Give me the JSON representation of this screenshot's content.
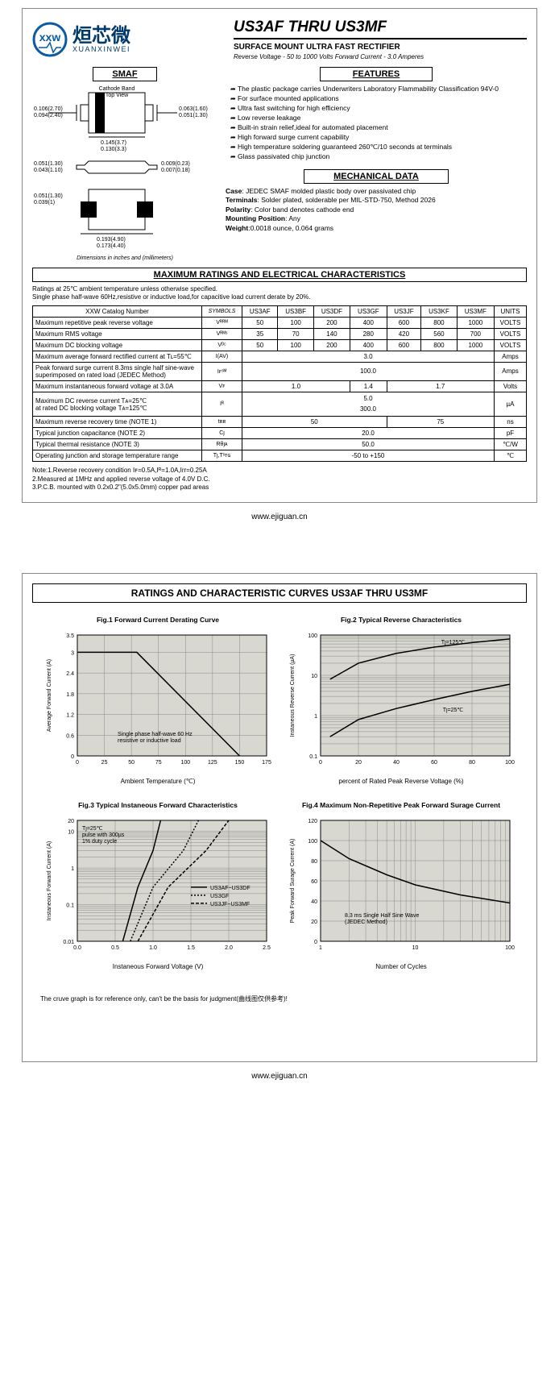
{
  "header": {
    "logo_cn": "烜芯微",
    "logo_en": "XUANXINWEI",
    "title": "US3AF THRU US3MF",
    "subtitle": "SURFACE MOUNT ULTRA FAST RECTIFIER",
    "spec_line": "Reverse Voltage - 50 to 1000 Volts  Forward Current - 3.0 Amperes",
    "logo_colors": {
      "ring": "#0a5aa6",
      "inner": "#0a5aa6"
    }
  },
  "smaf": {
    "heading": "SMAF",
    "dims_note": "Dimensions in inches and (millimeters)",
    "cathode_label": "Cathode Band\nTop View",
    "dims": {
      "a": "0.106(2.70)\n0.094(2.40)",
      "b": "0.063(1.60)\n0.051(1.30)",
      "c": "0.145(3.7)\n0.130(3.3)",
      "d": "0.051(1.30)\n0.043(1.10)",
      "e": "0.009(0.23)\n0.007(0.18)",
      "f": "0.051(1.30)\n0.039(1)",
      "g": "0.193(4.90)\n0.173(4.40)"
    }
  },
  "features": {
    "heading": "FEATURES",
    "items": [
      "The plastic package carries Underwriters Laboratory Flammability Classification 94V-0",
      "For surface mounted applications",
      "Ultra fast switching for high efficiency",
      "Low reverse leakage",
      "Built-in strain relief,ideal for automated placement",
      "High forward surge current capability",
      "High temperature soldering guaranteed 260℃/10 seconds at terminals",
      "Glass passivated chip junction"
    ]
  },
  "mechanical": {
    "heading": "MECHANICAL DATA",
    "case": "JEDEC SMAF molded plastic body over passivated chip",
    "terminals": "Solder plated, solderable per MIL-STD-750, Method 2026",
    "polarity": "Color band denotes cathode end",
    "mounting": "Any",
    "weight": "0.0018 ounce, 0.064 grams"
  },
  "ratings": {
    "heading": "MAXIMUM RATINGS AND ELECTRICAL CHARACTERISTICS",
    "intro": "Ratings at 25℃ ambient temperature unless otherwise specified.\nSingle phase half-wave 60Hz,resistive or inductive load,for capacitive load current derate by 20%.",
    "catalog_label": "XXW Catalog  Number",
    "symbols_label": "SYMBOLS",
    "units_label": "UNITS",
    "parts": [
      "US3AF",
      "US3BF",
      "US3DF",
      "US3GF",
      "US3JF",
      "US3KF",
      "US3MF"
    ],
    "rows": [
      {
        "param": "Maximum repetitive peak reverse voltage",
        "sym": "Vᴿᴿᴹ",
        "vals": [
          "50",
          "100",
          "200",
          "400",
          "600",
          "800",
          "1000"
        ],
        "unit": "VOLTS"
      },
      {
        "param": "Maximum RMS voltage",
        "sym": "Vᴿᴹˢ",
        "vals": [
          "35",
          "70",
          "140",
          "280",
          "420",
          "560",
          "700"
        ],
        "unit": "VOLTS"
      },
      {
        "param": "Maximum DC blocking voltage",
        "sym": "Vᴰᶜ",
        "vals": [
          "50",
          "100",
          "200",
          "400",
          "600",
          "800",
          "1000"
        ],
        "unit": "VOLTS"
      }
    ],
    "span_rows": [
      {
        "param": "Maximum average forward rectified current at Tʟ=55℃",
        "sym": "I(AV)",
        "val": "3.0",
        "unit": "Amps"
      },
      {
        "param": "Peak forward surge current 8.3ms single half sine-wave superimposed on rated load (JEDEC Method)",
        "sym": "Iꜰˢᴹ",
        "val": "100.0",
        "unit": "Amps"
      }
    ],
    "vf_row": {
      "param": "Maximum instantaneous forward voltage at 3.0A",
      "sym": "Vꜰ",
      "v1": "1.0",
      "v2": "1.4",
      "v3": "1.7",
      "unit": "Volts"
    },
    "ir_row": {
      "param": "Maximum DC reverse current    Tᴀ=25℃\nat rated DC blocking voltage    Tᴀ=125℃",
      "sym": "Iᴿ",
      "v1": "5.0",
      "v2": "300.0",
      "unit": "µA"
    },
    "trr_row": {
      "param": "Maximum reverse recovery time    (NOTE 1)",
      "sym": "tʀʀ",
      "v1": "50",
      "v2": "75",
      "unit": "ns"
    },
    "cj_row": {
      "param": "Typical junction capacitance (NOTE 2)",
      "sym": "Cȷ",
      "val": "20.0",
      "unit": "pF"
    },
    "rth_row": {
      "param": "Typical thermal resistance (NOTE 3)",
      "sym": "Rθȷᴀ",
      "val": "50.0",
      "unit": "℃/W"
    },
    "temp_row": {
      "param": "Operating junction and storage temperature range",
      "sym": "Tȷ,Tˢᴛɢ",
      "val": "-50 to +150",
      "unit": "℃"
    },
    "notes": "Note:1.Reverse recovery condition Iꜰ=0.5A,Iᴿ=1.0A,Irr=0.25A\n      2.Measured at 1MHz and applied reverse voltage of 4.0V D.C.\n      3.P.C.B. mounted with 0.2x0.2\"(5.0x5.0mm) copper pad areas"
  },
  "footer": {
    "url": "www.ejiguan.cn"
  },
  "page2": {
    "heading": "RATINGS AND CHARACTERISTIC CURVES US3AF THRU US3MF",
    "fig1": {
      "title": "Fig.1  Forward Current Derating Curve",
      "ylabel": "Average Forward Current  (A)",
      "xlabel": "Ambient Temperature (℃)",
      "ylim": [
        0,
        3.5
      ],
      "ytick": [
        0,
        0.6,
        1.2,
        1.8,
        2.4,
        3.0,
        3.5
      ],
      "xlim": [
        0,
        175
      ],
      "xtick": [
        0,
        25,
        50,
        75,
        100,
        125,
        150,
        175
      ],
      "note": "Single phase half-wave 60 Hz\nresistive or inductive load",
      "background_color": "#d8d8d0",
      "grid_color": "#666666",
      "line_color": "#000000",
      "line": [
        [
          0,
          3.0
        ],
        [
          55,
          3.0
        ],
        [
          150,
          0
        ]
      ]
    },
    "fig2": {
      "title": "Fig.2  Typical Reverse Characteristics",
      "ylabel": "Instaneous Reverse Current (µA)",
      "xlabel": "percent of Rated  Peak Reverse Voltage (%)",
      "ylim_log": [
        0.1,
        100
      ],
      "yticks": [
        0.1,
        1.0,
        10,
        100
      ],
      "xlim": [
        0,
        100
      ],
      "xtick": [
        0,
        20,
        40,
        60,
        80,
        100
      ],
      "label1": "Tȷ=125℃",
      "label2": "Tȷ=25℃",
      "background_color": "#d8d8d0",
      "line1": [
        [
          5,
          8
        ],
        [
          20,
          20
        ],
        [
          40,
          35
        ],
        [
          60,
          50
        ],
        [
          80,
          65
        ],
        [
          100,
          80
        ]
      ],
      "line2": [
        [
          5,
          0.3
        ],
        [
          20,
          0.8
        ],
        [
          40,
          1.5
        ],
        [
          60,
          2.5
        ],
        [
          80,
          4
        ],
        [
          100,
          6
        ]
      ]
    },
    "fig3": {
      "title": "Fig.3  Typical Instaneous Forward Characteristics",
      "ylabel": "Instaneous Forward Current (A)",
      "xlabel": "Instaneous Forward Voltage (V)",
      "ylim_log": [
        0.01,
        20
      ],
      "yticks": [
        0.01,
        0.1,
        1,
        10,
        20
      ],
      "xlim": [
        0.0,
        2.5
      ],
      "xtick": [
        0.0,
        0.5,
        1.0,
        1.5,
        2.0,
        2.5
      ],
      "note": "Tȷ=25℃\npulse with 300µs\n1% duty cycle",
      "legend": [
        "US3AF~US3DF",
        "US3GF",
        "US3JF~US3MF"
      ],
      "background_color": "#d8d8d0",
      "line1": [
        [
          0.6,
          0.01
        ],
        [
          0.8,
          0.3
        ],
        [
          1.0,
          3
        ],
        [
          1.1,
          20
        ]
      ],
      "line2": [
        [
          0.7,
          0.01
        ],
        [
          1.0,
          0.3
        ],
        [
          1.4,
          3
        ],
        [
          1.6,
          20
        ]
      ],
      "line3": [
        [
          0.8,
          0.01
        ],
        [
          1.2,
          0.3
        ],
        [
          1.7,
          3
        ],
        [
          2.0,
          20
        ]
      ]
    },
    "fig4": {
      "title": "Fig.4  Maximum Non-Repetitive Peak Forward Surage Current",
      "ylabel": "Peak Forward Surage Current (A)",
      "xlabel": "Number of Cycles",
      "ylim": [
        0,
        120
      ],
      "ytick": [
        0,
        20,
        40,
        60,
        80,
        100,
        120
      ],
      "xlim_log": [
        1,
        100
      ],
      "xticks": [
        1,
        10,
        100
      ],
      "note": "8.3 ms Single Half Sine Wave\n(JEDEC Method)",
      "background_color": "#d8d8d0",
      "line": [
        [
          1,
          100
        ],
        [
          2,
          82
        ],
        [
          5,
          66
        ],
        [
          10,
          56
        ],
        [
          30,
          46
        ],
        [
          100,
          38
        ]
      ]
    },
    "note": "The cruve graph is for reference only, can't be the basis for judgment(曲线图仅供参考)!"
  }
}
